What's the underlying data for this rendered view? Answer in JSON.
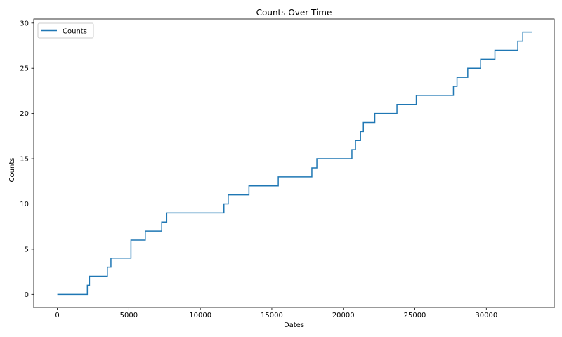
{
  "chart_data": {
    "type": "line",
    "step": "post",
    "title": "Counts Over Time",
    "xlabel": "Dates",
    "ylabel": "Counts",
    "xlim": [
      -1650,
      34750
    ],
    "ylim": [
      -1.45,
      30.45
    ],
    "xticks": [
      0,
      5000,
      10000,
      15000,
      20000,
      25000,
      30000
    ],
    "yticks": [
      0,
      5,
      10,
      15,
      20,
      25,
      30
    ],
    "grid": false,
    "legend": {
      "position": "top-left"
    },
    "colors": {
      "series": "#1f77b4"
    },
    "series": [
      {
        "name": "Counts",
        "x": [
          0,
          2100,
          2250,
          3500,
          3750,
          5150,
          6150,
          7300,
          7650,
          11650,
          11950,
          13400,
          15450,
          17800,
          18150,
          20600,
          20850,
          21200,
          21400,
          22200,
          23750,
          25100,
          27700,
          27950,
          28700,
          29600,
          30600,
          32200,
          32550,
          33200
        ],
        "values": [
          0,
          1,
          2,
          3,
          4,
          6,
          7,
          8,
          9,
          10,
          11,
          12,
          13,
          14,
          15,
          16,
          17,
          18,
          19,
          20,
          21,
          22,
          23,
          24,
          25,
          26,
          27,
          28,
          29,
          29
        ]
      }
    ]
  }
}
